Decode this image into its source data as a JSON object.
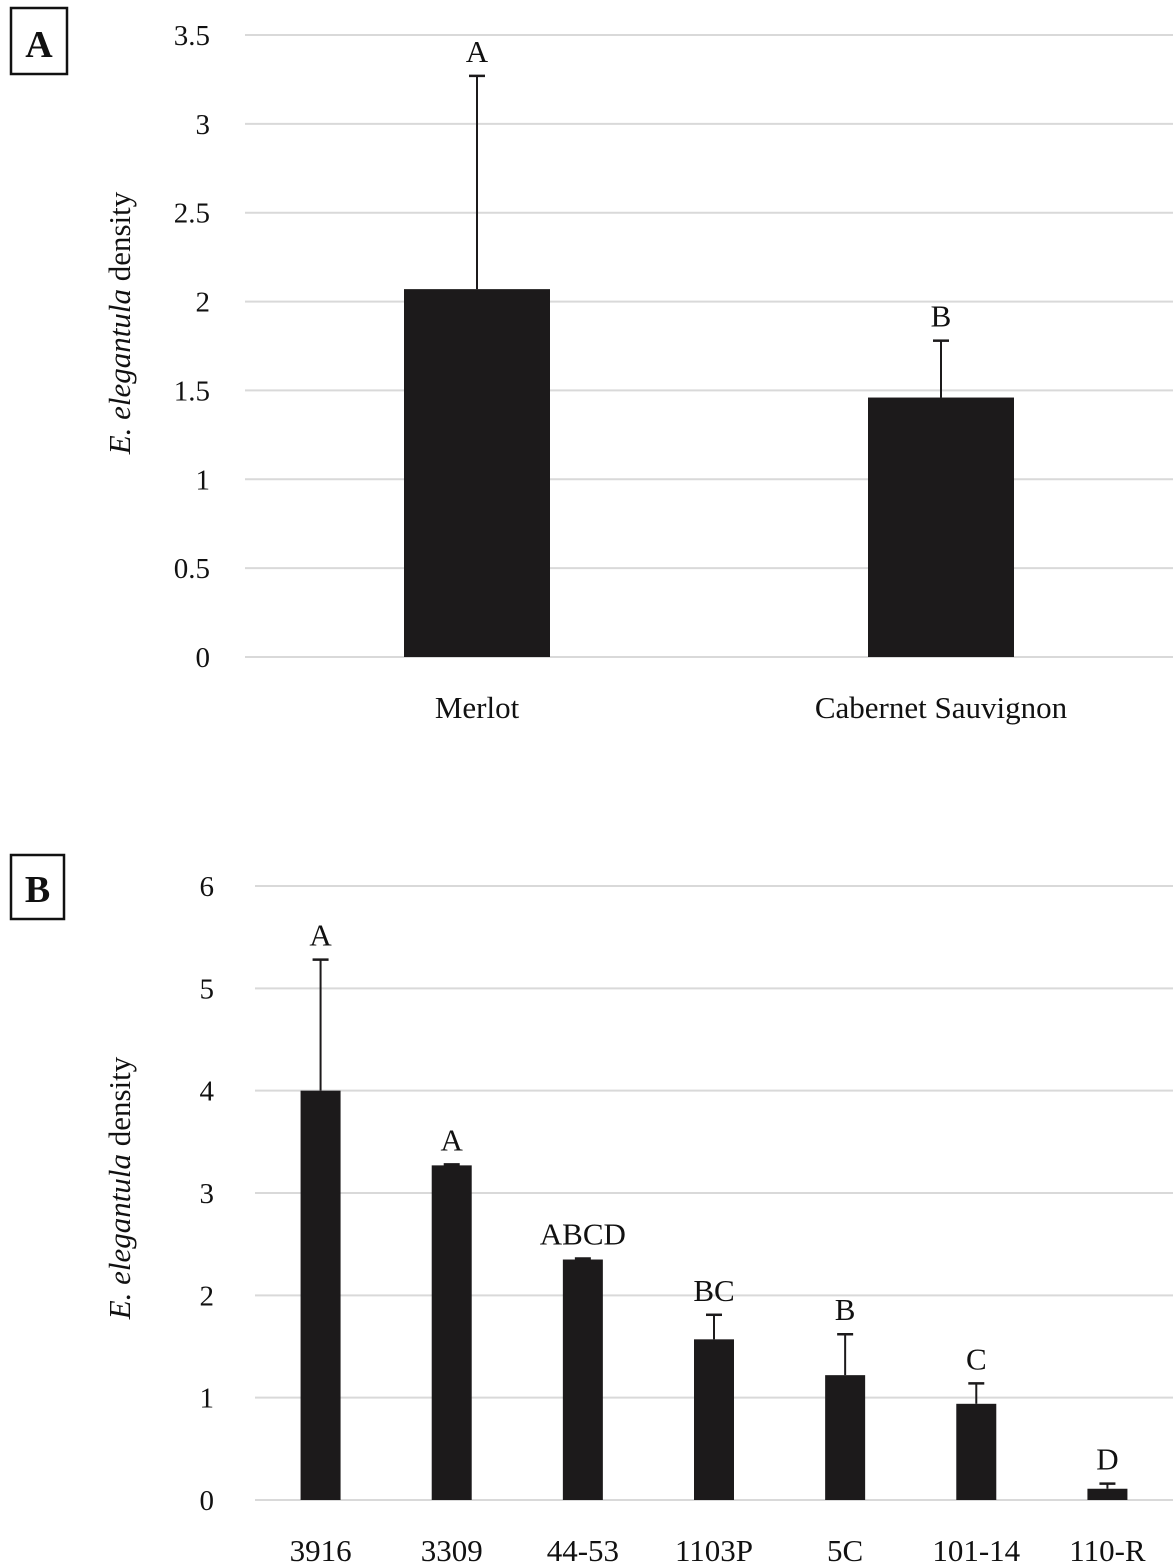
{
  "colors": {
    "bar": "#1c1a1b",
    "grid": "#d9d9d9",
    "text": "#111111",
    "error_bar": "#1c1a1b"
  },
  "chart_data": [
    {
      "type": "bar",
      "panel_label": "A",
      "ylabel": {
        "italic": "E. elegantula",
        "rest": " density"
      },
      "xlabel": "",
      "ylim": [
        0,
        3.5
      ],
      "yticks": [
        0,
        0.5,
        1,
        1.5,
        2,
        2.5,
        3,
        3.5
      ],
      "ytick_labels": [
        "0",
        "0.5",
        "1",
        "1.5",
        "2",
        "2.5",
        "3",
        "3.5"
      ],
      "grid": true,
      "legend": "none",
      "categories": [
        "Merlot",
        "Cabernet Sauvignon"
      ],
      "values": [
        2.07,
        1.46
      ],
      "error_upper": [
        1.2,
        0.32
      ],
      "significance_labels": [
        "A",
        "B"
      ]
    },
    {
      "type": "bar",
      "panel_label": "B",
      "ylabel": {
        "italic": "E. elegantula",
        "rest": " density"
      },
      "xlabel": "",
      "ylim": [
        0,
        6
      ],
      "yticks": [
        0,
        1,
        2,
        3,
        4,
        5,
        6
      ],
      "ytick_labels": [
        "0",
        "1",
        "2",
        "3",
        "4",
        "5",
        "6"
      ],
      "grid": true,
      "legend": "none",
      "categories": [
        "3916",
        "3309",
        "44-53",
        "1103P",
        "5C",
        "101-14",
        "110-R"
      ],
      "values": [
        4.0,
        3.27,
        2.35,
        1.57,
        1.22,
        0.94,
        0.11
      ],
      "error_upper": [
        1.28,
        0.01,
        0.01,
        0.24,
        0.4,
        0.2,
        0.05
      ],
      "significance_labels": [
        "A",
        "A",
        "ABCD",
        "BC",
        "B",
        "C",
        "D"
      ]
    }
  ]
}
